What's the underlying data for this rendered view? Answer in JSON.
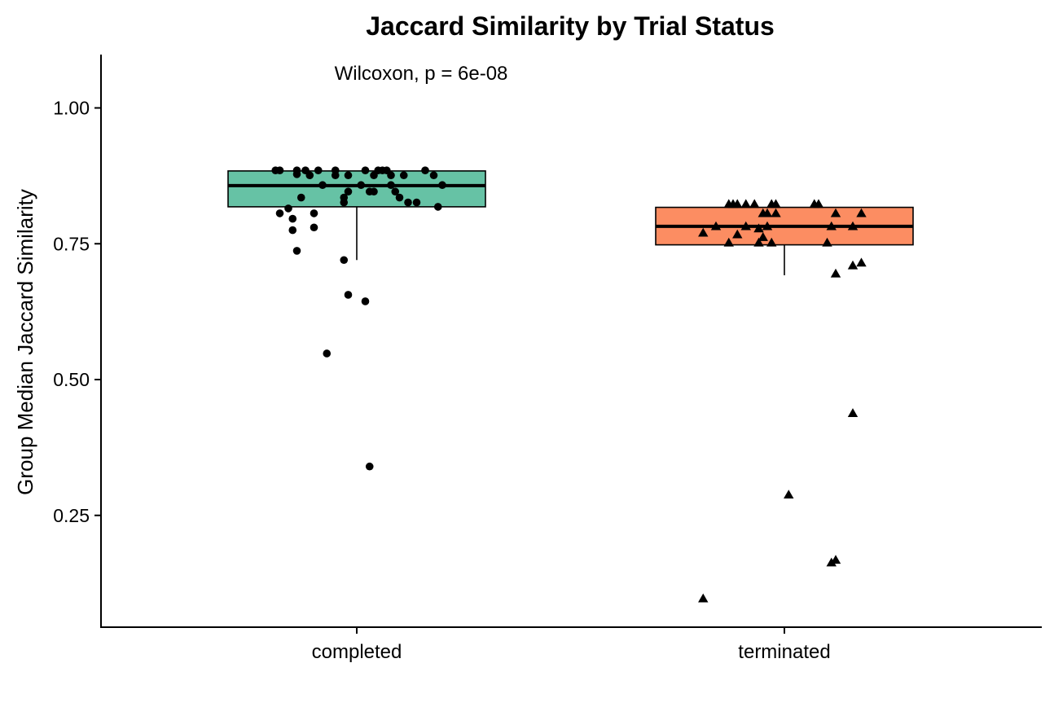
{
  "chart_data": {
    "type": "box",
    "title": "Jaccard Similarity by Trial Status",
    "xlabel": "",
    "ylabel": "Group Median Jaccard Similarity",
    "ylim": [
      0.05,
      1.1
    ],
    "yticks": [
      0.25,
      0.5,
      0.75,
      1.0
    ],
    "ytick_labels": [
      "0.25",
      "0.50",
      "0.75",
      "1.00"
    ],
    "categories": [
      "completed",
      "terminated"
    ],
    "annotation": "Wilcoxon, p = 6e-08",
    "grid": false,
    "legend": "none",
    "groups": [
      {
        "name": "completed",
        "color": "#66c2a5",
        "marker": "circle",
        "box": {
          "q1": 0.818,
          "median": 0.857,
          "q3": 0.884,
          "whisker_low": 0.72,
          "whisker_high": 0.884
        },
        "points": [
          {
            "x": -0.19,
            "y": 0.885
          },
          {
            "x": -0.18,
            "y": 0.885
          },
          {
            "x": -0.14,
            "y": 0.885
          },
          {
            "x": -0.14,
            "y": 0.878
          },
          {
            "x": -0.12,
            "y": 0.885
          },
          {
            "x": -0.11,
            "y": 0.876
          },
          {
            "x": -0.09,
            "y": 0.885
          },
          {
            "x": -0.08,
            "y": 0.858
          },
          {
            "x": -0.05,
            "y": 0.876
          },
          {
            "x": -0.05,
            "y": 0.885
          },
          {
            "x": -0.03,
            "y": 0.835
          },
          {
            "x": -0.03,
            "y": 0.826
          },
          {
            "x": -0.02,
            "y": 0.846
          },
          {
            "x": -0.02,
            "y": 0.876
          },
          {
            "x": 0.01,
            "y": 0.858
          },
          {
            "x": 0.02,
            "y": 0.885
          },
          {
            "x": 0.03,
            "y": 0.846
          },
          {
            "x": 0.04,
            "y": 0.846
          },
          {
            "x": 0.04,
            "y": 0.876
          },
          {
            "x": 0.05,
            "y": 0.885
          },
          {
            "x": 0.06,
            "y": 0.885
          },
          {
            "x": 0.07,
            "y": 0.885
          },
          {
            "x": 0.08,
            "y": 0.876
          },
          {
            "x": 0.08,
            "y": 0.858
          },
          {
            "x": 0.09,
            "y": 0.846
          },
          {
            "x": 0.1,
            "y": 0.835
          },
          {
            "x": 0.11,
            "y": 0.876
          },
          {
            "x": 0.12,
            "y": 0.826
          },
          {
            "x": 0.14,
            "y": 0.826
          },
          {
            "x": 0.16,
            "y": 0.885
          },
          {
            "x": 0.18,
            "y": 0.876
          },
          {
            "x": 0.19,
            "y": 0.818
          },
          {
            "x": 0.2,
            "y": 0.858
          },
          {
            "x": -0.18,
            "y": 0.806
          },
          {
            "x": -0.16,
            "y": 0.815
          },
          {
            "x": -0.15,
            "y": 0.796
          },
          {
            "x": -0.13,
            "y": 0.835
          },
          {
            "x": -0.1,
            "y": 0.78
          },
          {
            "x": -0.1,
            "y": 0.806
          },
          {
            "x": -0.15,
            "y": 0.775
          },
          {
            "x": -0.14,
            "y": 0.737
          },
          {
            "x": -0.03,
            "y": 0.72
          },
          {
            "x": -0.02,
            "y": 0.656
          },
          {
            "x": 0.02,
            "y": 0.644
          },
          {
            "x": -0.07,
            "y": 0.548
          },
          {
            "x": 0.03,
            "y": 0.34
          }
        ]
      },
      {
        "name": "terminated",
        "color": "#fc8d62",
        "marker": "triangle",
        "box": {
          "q1": 0.748,
          "median": 0.782,
          "q3": 0.817,
          "whisker_low": 0.692,
          "whisker_high": 0.817
        },
        "points": [
          {
            "x": -0.13,
            "y": 0.823
          },
          {
            "x": -0.12,
            "y": 0.823
          },
          {
            "x": -0.11,
            "y": 0.823
          },
          {
            "x": -0.09,
            "y": 0.823
          },
          {
            "x": -0.07,
            "y": 0.823
          },
          {
            "x": -0.05,
            "y": 0.806
          },
          {
            "x": -0.04,
            "y": 0.806
          },
          {
            "x": -0.03,
            "y": 0.823
          },
          {
            "x": -0.02,
            "y": 0.806
          },
          {
            "x": -0.02,
            "y": 0.823
          },
          {
            "x": 0.07,
            "y": 0.823
          },
          {
            "x": 0.08,
            "y": 0.823
          },
          {
            "x": 0.12,
            "y": 0.806
          },
          {
            "x": 0.18,
            "y": 0.806
          },
          {
            "x": -0.19,
            "y": 0.77
          },
          {
            "x": -0.16,
            "y": 0.782
          },
          {
            "x": -0.11,
            "y": 0.767
          },
          {
            "x": -0.09,
            "y": 0.782
          },
          {
            "x": -0.06,
            "y": 0.778
          },
          {
            "x": -0.05,
            "y": 0.762
          },
          {
            "x": -0.04,
            "y": 0.782
          },
          {
            "x": -0.03,
            "y": 0.752
          },
          {
            "x": -0.06,
            "y": 0.752
          },
          {
            "x": -0.13,
            "y": 0.752
          },
          {
            "x": 0.1,
            "y": 0.752
          },
          {
            "x": 0.11,
            "y": 0.782
          },
          {
            "x": 0.16,
            "y": 0.782
          },
          {
            "x": 0.12,
            "y": 0.695
          },
          {
            "x": 0.16,
            "y": 0.71
          },
          {
            "x": 0.18,
            "y": 0.715
          },
          {
            "x": 0.16,
            "y": 0.438
          },
          {
            "x": 0.01,
            "y": 0.288
          },
          {
            "x": 0.12,
            "y": 0.168
          },
          {
            "x": 0.11,
            "y": 0.163
          },
          {
            "x": -0.19,
            "y": 0.097
          }
        ]
      }
    ]
  }
}
